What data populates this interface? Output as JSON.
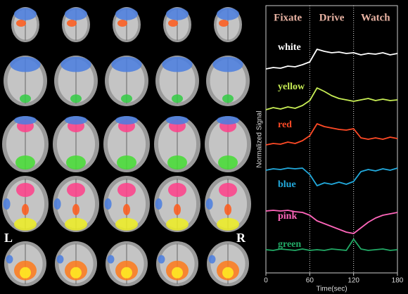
{
  "chart_data": {
    "type": "line",
    "phases": [
      "Fixate",
      "Drive",
      "Watch"
    ],
    "xlabel": "Time(sec)",
    "ylabel": "Normalized Signal",
    "x": [
      0,
      10,
      20,
      30,
      40,
      50,
      60,
      70,
      80,
      90,
      100,
      110,
      120,
      130,
      140,
      150,
      160,
      170,
      180
    ],
    "xlim": [
      0,
      180
    ],
    "xticks": [
      0,
      60,
      120,
      180
    ],
    "ylim": [
      0,
      38
    ],
    "series": [
      {
        "name": "white",
        "color": "#ffffff",
        "values": [
          29.0,
          29.2,
          29.1,
          29.4,
          29.3,
          29.6,
          30.0,
          31.8,
          31.5,
          31.3,
          31.4,
          31.2,
          31.3,
          31.0,
          31.2,
          31.1,
          31.3,
          31.0,
          31.2
        ]
      },
      {
        "name": "yellow",
        "color": "#c8ee55",
        "values": [
          23.2,
          23.5,
          23.3,
          23.6,
          23.4,
          23.8,
          24.5,
          26.3,
          25.8,
          25.2,
          24.8,
          24.6,
          24.4,
          24.6,
          24.8,
          24.5,
          24.7,
          24.5,
          24.6
        ]
      },
      {
        "name": "red",
        "color": "#ff4a26",
        "values": [
          18.2,
          18.4,
          18.3,
          18.6,
          18.4,
          18.8,
          19.5,
          21.2,
          20.8,
          20.6,
          20.4,
          20.3,
          20.5,
          19.2,
          19.0,
          19.2,
          19.0,
          19.3,
          19.1
        ]
      },
      {
        "name": "blue",
        "color": "#22aadd",
        "values": [
          14.6,
          14.8,
          14.7,
          14.9,
          14.8,
          14.9,
          14.0,
          12.4,
          12.8,
          12.6,
          12.9,
          12.6,
          13.0,
          14.4,
          14.7,
          14.5,
          14.8,
          14.6,
          14.9
        ]
      },
      {
        "name": "pink",
        "color": "#ff66bb",
        "values": [
          8.8,
          8.9,
          8.8,
          8.9,
          8.7,
          8.6,
          8.2,
          7.4,
          7.0,
          6.6,
          6.2,
          5.8,
          5.6,
          6.4,
          7.2,
          7.8,
          8.2,
          8.4,
          8.6
        ]
      },
      {
        "name": "green",
        "color": "#22aa66",
        "values": [
          3.3,
          3.2,
          3.4,
          3.3,
          3.2,
          3.4,
          3.2,
          3.3,
          3.2,
          3.4,
          3.3,
          3.2,
          4.8,
          3.4,
          3.2,
          3.3,
          3.4,
          3.2,
          3.3
        ]
      }
    ]
  },
  "brain_labels": {
    "left": "L",
    "right": "R"
  }
}
